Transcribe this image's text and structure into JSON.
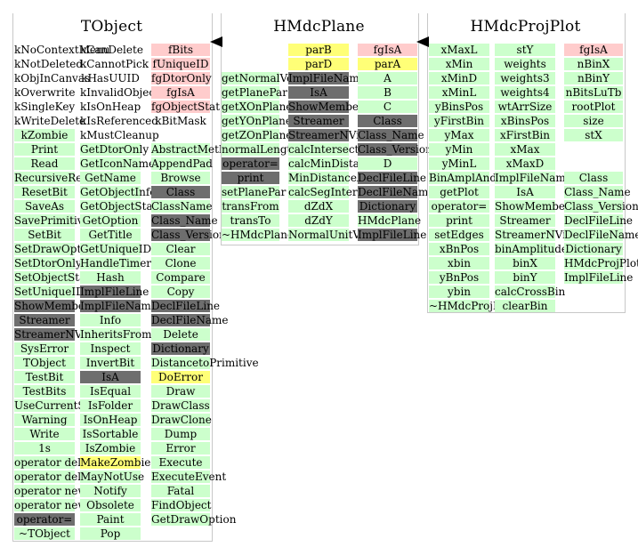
{
  "colors": {
    "green": "#ccffcc",
    "pink": "#ffcccc",
    "yellow": "#ffff77",
    "gray": "#6e6e6e"
  },
  "classes": [
    {
      "name": "TObject",
      "columns": [
        {
          "cells": [
            {
              "t": "kNoContextMenu",
              "c": "plain"
            },
            {
              "t": "kNotDeleted",
              "c": "plain"
            },
            {
              "t": "kObjInCanvas",
              "c": "plain"
            },
            {
              "t": "kOverwrite",
              "c": "plain"
            },
            {
              "t": "kSingleKey",
              "c": "plain"
            },
            {
              "t": "kWriteDelete",
              "c": "plain"
            },
            {
              "t": "kZombie",
              "c": "green"
            },
            {
              "t": "Print",
              "c": "green"
            },
            {
              "t": "Read",
              "c": "green"
            },
            {
              "t": "RecursiveRemove",
              "c": "green"
            },
            {
              "t": "ResetBit",
              "c": "green"
            },
            {
              "t": "SaveAs",
              "c": "green"
            },
            {
              "t": "SavePrimitive",
              "c": "green"
            },
            {
              "t": "SetBit",
              "c": "green"
            },
            {
              "t": "SetDrawOption",
              "c": "green"
            },
            {
              "t": "SetDtorOnly",
              "c": "green"
            },
            {
              "t": "SetObjectStat",
              "c": "green"
            },
            {
              "t": "SetUniqueID",
              "c": "green"
            },
            {
              "t": "ShowMembers",
              "c": "gray"
            },
            {
              "t": "Streamer",
              "c": "gray"
            },
            {
              "t": "StreamerNVirtual",
              "c": "gray"
            },
            {
              "t": "SysError",
              "c": "green"
            },
            {
              "t": "TObject",
              "c": "green"
            },
            {
              "t": "TestBit",
              "c": "green"
            },
            {
              "t": "TestBits",
              "c": "green"
            },
            {
              "t": "UseCurrentStyle",
              "c": "green"
            },
            {
              "t": "Warning",
              "c": "green"
            },
            {
              "t": "Write",
              "c": "green"
            },
            {
              "t": "1s",
              "c": "green"
            },
            {
              "t": "operator delete",
              "c": "green"
            },
            {
              "t": "operator delete[]",
              "c": "green"
            },
            {
              "t": "operator new",
              "c": "green"
            },
            {
              "t": "operator new[]",
              "c": "green"
            },
            {
              "t": "operator=",
              "c": "gray"
            },
            {
              "t": "~TObject",
              "c": "green"
            }
          ]
        },
        {
          "cells": [
            {
              "t": "kCanDelete",
              "c": "plain"
            },
            {
              "t": "kCannotPick",
              "c": "plain"
            },
            {
              "t": "kHasUUID",
              "c": "plain"
            },
            {
              "t": "kInvalidObject",
              "c": "plain"
            },
            {
              "t": "kIsOnHeap",
              "c": "plain"
            },
            {
              "t": "kIsReferenced",
              "c": "plain"
            },
            {
              "t": "kMustCleanup",
              "c": "plain"
            },
            {
              "t": "GetDtorOnly",
              "c": "green"
            },
            {
              "t": "GetIconName",
              "c": "green"
            },
            {
              "t": "GetName",
              "c": "green"
            },
            {
              "t": "GetObjectInfo",
              "c": "green"
            },
            {
              "t": "GetObjectStat",
              "c": "green"
            },
            {
              "t": "GetOption",
              "c": "green"
            },
            {
              "t": "GetTitle",
              "c": "green"
            },
            {
              "t": "GetUniqueID",
              "c": "green"
            },
            {
              "t": "HandleTimer",
              "c": "green"
            },
            {
              "t": "Hash",
              "c": "green"
            },
            {
              "t": "ImplFileLine",
              "c": "gray"
            },
            {
              "t": "ImplFileName",
              "c": "gray"
            },
            {
              "t": "Info",
              "c": "green"
            },
            {
              "t": "InheritsFrom",
              "c": "green"
            },
            {
              "t": "Inspect",
              "c": "green"
            },
            {
              "t": "InvertBit",
              "c": "green"
            },
            {
              "t": "IsA",
              "c": "gray"
            },
            {
              "t": "IsEqual",
              "c": "green"
            },
            {
              "t": "IsFolder",
              "c": "green"
            },
            {
              "t": "IsOnHeap",
              "c": "green"
            },
            {
              "t": "IsSortable",
              "c": "green"
            },
            {
              "t": "IsZombie",
              "c": "green"
            },
            {
              "t": "MakeZombie",
              "c": "yellow"
            },
            {
              "t": "MayNotUse",
              "c": "green"
            },
            {
              "t": "Notify",
              "c": "green"
            },
            {
              "t": "Obsolete",
              "c": "green"
            },
            {
              "t": "Paint",
              "c": "green"
            },
            {
              "t": "Pop",
              "c": "green"
            }
          ]
        },
        {
          "cells": [
            {
              "t": "fBits",
              "c": "pink"
            },
            {
              "t": "fUniqueID",
              "c": "pink"
            },
            {
              "t": "fgDtorOnly",
              "c": "pink"
            },
            {
              "t": "fgIsA",
              "c": "pink"
            },
            {
              "t": "fgObjectStat",
              "c": "pink"
            },
            {
              "t": "kBitMask",
              "c": "plain"
            },
            {
              "t": "",
              "c": "blank"
            },
            {
              "t": "AbstractMethod",
              "c": "green"
            },
            {
              "t": "AppendPad",
              "c": "green"
            },
            {
              "t": "Browse",
              "c": "green"
            },
            {
              "t": "Class",
              "c": "gray"
            },
            {
              "t": "ClassName",
              "c": "green"
            },
            {
              "t": "Class_Name",
              "c": "gray"
            },
            {
              "t": "Class_Version",
              "c": "gray"
            },
            {
              "t": "Clear",
              "c": "green"
            },
            {
              "t": "Clone",
              "c": "green"
            },
            {
              "t": "Compare",
              "c": "green"
            },
            {
              "t": "Copy",
              "c": "green"
            },
            {
              "t": "DeclFileLine",
              "c": "gray"
            },
            {
              "t": "DeclFileName",
              "c": "gray"
            },
            {
              "t": "Delete",
              "c": "green"
            },
            {
              "t": "Dictionary",
              "c": "gray"
            },
            {
              "t": "DistancetoPrimitive",
              "c": "green"
            },
            {
              "t": "DoError",
              "c": "yellow"
            },
            {
              "t": "Draw",
              "c": "green"
            },
            {
              "t": "DrawClass",
              "c": "green"
            },
            {
              "t": "DrawClone",
              "c": "green"
            },
            {
              "t": "Dump",
              "c": "green"
            },
            {
              "t": "Error",
              "c": "green"
            },
            {
              "t": "Execute",
              "c": "green"
            },
            {
              "t": "ExecuteEvent",
              "c": "green"
            },
            {
              "t": "Fatal",
              "c": "green"
            },
            {
              "t": "FindObject",
              "c": "green"
            },
            {
              "t": "GetDrawOption",
              "c": "green"
            }
          ]
        }
      ]
    },
    {
      "name": "HMdcPlane",
      "columns": [
        {
          "cells": [
            {
              "t": "",
              "c": "blank"
            },
            {
              "t": "",
              "c": "blank"
            },
            {
              "t": "getNormalVector",
              "c": "green"
            },
            {
              "t": "getPlanePar",
              "c": "green"
            },
            {
              "t": "getXOnPlane",
              "c": "green"
            },
            {
              "t": "getYOnPlane",
              "c": "green"
            },
            {
              "t": "getZOnPlane",
              "c": "green"
            },
            {
              "t": "normalLength",
              "c": "green"
            },
            {
              "t": "operator=",
              "c": "gray"
            },
            {
              "t": "print",
              "c": "gray"
            },
            {
              "t": "setPlanePar",
              "c": "green"
            },
            {
              "t": "transFrom",
              "c": "green"
            },
            {
              "t": "transTo",
              "c": "green"
            },
            {
              "t": "~HMdcPlane",
              "c": "green"
            }
          ]
        },
        {
          "cells": [
            {
              "t": "parB",
              "c": "yellow"
            },
            {
              "t": "parD",
              "c": "yellow"
            },
            {
              "t": "ImplFileName",
              "c": "gray"
            },
            {
              "t": "IsA",
              "c": "gray"
            },
            {
              "t": "ShowMembers",
              "c": "gray"
            },
            {
              "t": "Streamer",
              "c": "gray"
            },
            {
              "t": "StreamerNVirtual",
              "c": "gray"
            },
            {
              "t": "calcIntersection",
              "c": "green"
            },
            {
              "t": "calcMinDistance",
              "c": "green"
            },
            {
              "t": "MinDistanceAndZ",
              "c": "green"
            },
            {
              "t": "calcSegIntersec",
              "c": "green"
            },
            {
              "t": "dZdX",
              "c": "green"
            },
            {
              "t": "dZdY",
              "c": "green"
            },
            {
              "t": "NormalUnitVector",
              "c": "green"
            }
          ]
        },
        {
          "cells": [
            {
              "t": "fgIsA",
              "c": "pink"
            },
            {
              "t": "parA",
              "c": "yellow"
            },
            {
              "t": "A",
              "c": "green"
            },
            {
              "t": "B",
              "c": "green"
            },
            {
              "t": "C",
              "c": "green"
            },
            {
              "t": "Class",
              "c": "gray"
            },
            {
              "t": "Class_Name",
              "c": "gray"
            },
            {
              "t": "Class_Version",
              "c": "gray"
            },
            {
              "t": "D",
              "c": "green"
            },
            {
              "t": "DeclFileLine",
              "c": "gray"
            },
            {
              "t": "DeclFileName",
              "c": "gray"
            },
            {
              "t": "Dictionary",
              "c": "gray"
            },
            {
              "t": "HMdcPlane",
              "c": "green"
            },
            {
              "t": "ImplFileLine",
              "c": "gray"
            }
          ]
        }
      ]
    },
    {
      "name": "HMdcProjPlot",
      "columns": [
        {
          "cells": [
            {
              "t": "xMaxL",
              "c": "green"
            },
            {
              "t": "xMin",
              "c": "green"
            },
            {
              "t": "xMinD",
              "c": "green"
            },
            {
              "t": "xMinL",
              "c": "green"
            },
            {
              "t": "yBinsPos",
              "c": "green"
            },
            {
              "t": "yFirstBin",
              "c": "green"
            },
            {
              "t": "yMax",
              "c": "green"
            },
            {
              "t": "yMin",
              "c": "green"
            },
            {
              "t": "yMinL",
              "c": "green"
            },
            {
              "t": "BinAmplAndClear",
              "c": "green"
            },
            {
              "t": "getPlot",
              "c": "green"
            },
            {
              "t": "operator=",
              "c": "green"
            },
            {
              "t": "print",
              "c": "green"
            },
            {
              "t": "setEdges",
              "c": "green"
            },
            {
              "t": "xBnPos",
              "c": "green"
            },
            {
              "t": "xbin",
              "c": "green"
            },
            {
              "t": "yBnPos",
              "c": "green"
            },
            {
              "t": "ybin",
              "c": "green"
            },
            {
              "t": "~HMdcProjPlot",
              "c": "green"
            }
          ]
        },
        {
          "cells": [
            {
              "t": "stY",
              "c": "green"
            },
            {
              "t": "weights",
              "c": "green"
            },
            {
              "t": "weights3",
              "c": "green"
            },
            {
              "t": "weights4",
              "c": "green"
            },
            {
              "t": "wtArrSize",
              "c": "green"
            },
            {
              "t": "xBinsPos",
              "c": "green"
            },
            {
              "t": "xFirstBin",
              "c": "green"
            },
            {
              "t": "xMax",
              "c": "green"
            },
            {
              "t": "xMaxD",
              "c": "green"
            },
            {
              "t": "ImplFileName",
              "c": "green"
            },
            {
              "t": "IsA",
              "c": "green"
            },
            {
              "t": "ShowMembers",
              "c": "green"
            },
            {
              "t": "Streamer",
              "c": "green"
            },
            {
              "t": "StreamerNVirtual",
              "c": "green"
            },
            {
              "t": "binAmplitude",
              "c": "green"
            },
            {
              "t": "binX",
              "c": "green"
            },
            {
              "t": "binY",
              "c": "green"
            },
            {
              "t": "calcCrossBin",
              "c": "green"
            },
            {
              "t": "clearBin",
              "c": "green"
            }
          ]
        },
        {
          "cells": [
            {
              "t": "fgIsA",
              "c": "pink"
            },
            {
              "t": "nBinX",
              "c": "green"
            },
            {
              "t": "nBinY",
              "c": "green"
            },
            {
              "t": "nBitsLuTb",
              "c": "green"
            },
            {
              "t": "rootPlot",
              "c": "green"
            },
            {
              "t": "size",
              "c": "green"
            },
            {
              "t": "stX",
              "c": "green"
            },
            {
              "t": "",
              "c": "blank"
            },
            {
              "t": "",
              "c": "blank"
            },
            {
              "t": "Class",
              "c": "green"
            },
            {
              "t": "Class_Name",
              "c": "green"
            },
            {
              "t": "Class_Version",
              "c": "green"
            },
            {
              "t": "DeclFileLine",
              "c": "green"
            },
            {
              "t": "DeclFileName",
              "c": "green"
            },
            {
              "t": "Dictionary",
              "c": "green"
            },
            {
              "t": "HMdcProjPlot",
              "c": "green"
            },
            {
              "t": "ImplFileLine",
              "c": "green"
            }
          ]
        }
      ]
    }
  ]
}
